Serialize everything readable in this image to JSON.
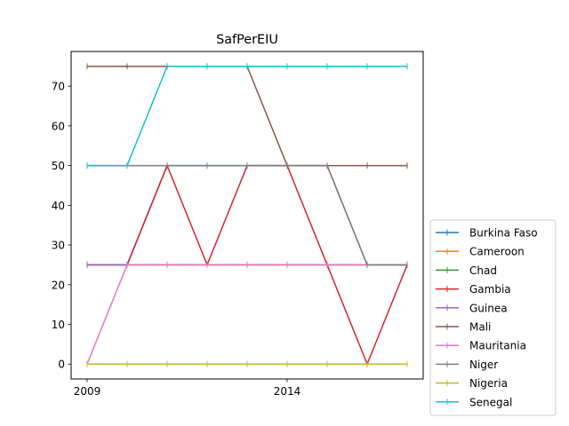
{
  "chart_data": {
    "type": "line",
    "title": "SafPerEIU",
    "xlabel": "",
    "ylabel": "",
    "x": [
      2009,
      2010,
      2011,
      2012,
      2013,
      2014,
      2015,
      2016,
      2017
    ],
    "xlim": [
      2008.6,
      2017.4
    ],
    "ylim": [
      -3.75,
      78.75
    ],
    "x_ticks": [
      2009,
      2014
    ],
    "x_tick_labels": [
      "2009",
      "2014"
    ],
    "y_ticks": [
      0,
      10,
      20,
      30,
      40,
      50,
      60,
      70
    ],
    "y_tick_labels": [
      "0",
      "10",
      "20",
      "30",
      "40",
      "50",
      "60",
      "70"
    ],
    "grid": false,
    "legend_position": "lower-right, outside plot",
    "marker": "vertical tick",
    "series": [
      {
        "name": "Burkina Faso",
        "color": "#1f77b4",
        "values": [
          25,
          25,
          50,
          50,
          50,
          50,
          50,
          25,
          25
        ]
      },
      {
        "name": "Cameroon",
        "color": "#ff7f0e",
        "values": [
          25,
          25,
          25,
          25,
          25,
          25,
          25,
          25,
          25
        ]
      },
      {
        "name": "Chad",
        "color": "#2ca02c",
        "values": [
          25,
          25,
          25,
          25,
          25,
          25,
          25,
          25,
          25
        ]
      },
      {
        "name": "Gambia",
        "color": "#d62728",
        "values": [
          25,
          25,
          50,
          25,
          50,
          50,
          25,
          0,
          25
        ]
      },
      {
        "name": "Guinea",
        "color": "#9467bd",
        "values": [
          25,
          25,
          25,
          25,
          25,
          25,
          25,
          25,
          25
        ]
      },
      {
        "name": "Mali",
        "color": "#8c564b",
        "values": [
          75,
          75,
          75,
          75,
          75,
          50,
          50,
          50,
          50
        ]
      },
      {
        "name": "Mauritania",
        "color": "#e377c2",
        "values": [
          0,
          25,
          25,
          25,
          25,
          25,
          25,
          25,
          25
        ]
      },
      {
        "name": "Niger",
        "color": "#7f7f7f",
        "values": [
          50,
          50,
          50,
          50,
          50,
          50,
          50,
          25,
          25
        ]
      },
      {
        "name": "Nigeria",
        "color": "#bcbd22",
        "values": [
          0,
          0,
          0,
          0,
          0,
          0,
          0,
          0,
          0
        ]
      },
      {
        "name": "Senegal",
        "color": "#17becf",
        "values": [
          50,
          50,
          75,
          75,
          75,
          75,
          75,
          75,
          75
        ]
      }
    ]
  }
}
